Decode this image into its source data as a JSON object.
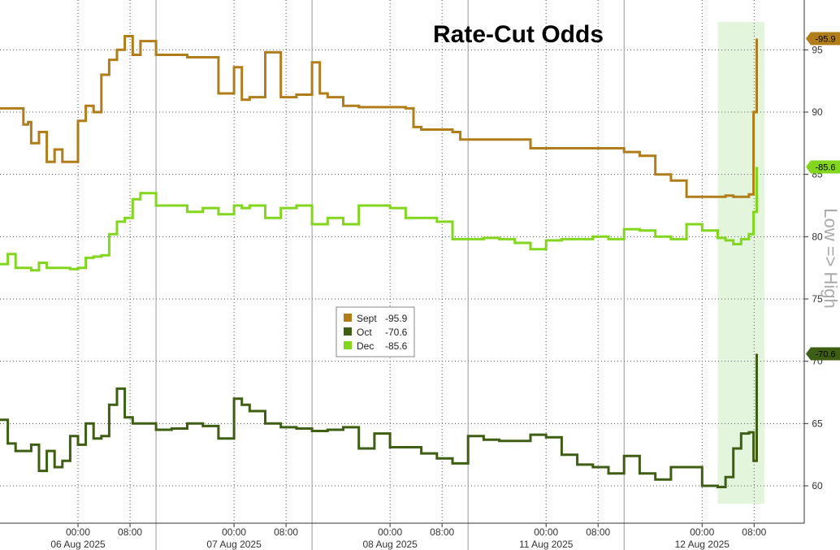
{
  "chart_data": {
    "type": "line",
    "title": "Rate-Cut Odds",
    "side_label": "Low => High",
    "y_axis": {
      "range": [
        57,
        99
      ],
      "ticks": [
        60,
        65,
        70,
        75,
        80,
        85,
        90,
        95
      ],
      "position": "right"
    },
    "x_axis": {
      "day_labels": [
        "06 Aug 2025",
        "07 Aug 2025",
        "08 Aug 2025",
        "11 Aug 2025",
        "12 Aug 2025"
      ],
      "time_ticks": [
        {
          "label": "00:00",
          "t": 0.5
        },
        {
          "label": "08:00",
          "t": 0.8333
        },
        {
          "label": "00:00",
          "t": 1.5
        },
        {
          "label": "08:00",
          "t": 1.8333
        },
        {
          "label": "00:00",
          "t": 2.5
        },
        {
          "label": "08:00",
          "t": 2.8333
        },
        {
          "label": "00:00",
          "t": 3.5
        },
        {
          "label": "08:00",
          "t": 3.8333
        },
        {
          "label": "00:00",
          "t": 4.5
        },
        {
          "label": "08:00",
          "t": 4.8333
        }
      ]
    },
    "grid": true,
    "highlight_region": {
      "t_start": 4.6,
      "t_end": 4.9,
      "color": "#e3f5dc"
    },
    "legend": {
      "position": "center",
      "entries": [
        {
          "name": "Sept",
          "value": "-95.9"
        },
        {
          "name": "Oct",
          "value": "-70.6"
        },
        {
          "name": "Dec",
          "value": "-85.6"
        }
      ]
    },
    "series": [
      {
        "name": "Sept",
        "color": "#b07d1a",
        "last_value": "-95.9",
        "x": [
          0,
          0.1,
          0.15,
          0.18,
          0.2,
          0.25,
          0.3,
          0.35,
          0.4,
          0.45,
          0.5,
          0.55,
          0.6,
          0.65,
          0.7,
          0.75,
          0.8,
          0.85,
          0.9,
          1.0,
          1.1,
          1.2,
          1.3,
          1.4,
          1.5,
          1.55,
          1.6,
          1.7,
          1.8,
          1.9,
          2.0,
          2.05,
          2.1,
          2.2,
          2.3,
          2.4,
          2.5,
          2.6,
          2.65,
          2.7,
          2.8,
          2.9,
          2.95,
          3.0,
          3.1,
          3.2,
          3.4,
          3.5,
          3.6,
          3.8,
          4.0,
          4.1,
          4.2,
          4.3,
          4.4,
          4.5,
          4.6,
          4.65,
          4.7,
          4.75,
          4.8,
          4.83,
          4.85
        ],
        "y": [
          90.3,
          90.3,
          89.0,
          89.2,
          87.5,
          88.4,
          86.0,
          87.0,
          86.0,
          86.0,
          89.3,
          90.5,
          90.0,
          93.0,
          94.2,
          95.0,
          96.1,
          94.6,
          95.7,
          94.6,
          94.6,
          94.4,
          94.4,
          91.5,
          93.6,
          91.0,
          91.2,
          94.8,
          91.2,
          91.4,
          94.0,
          91.5,
          91.2,
          90.5,
          90.4,
          90.4,
          90.4,
          90.3,
          88.8,
          88.6,
          88.6,
          88.4,
          87.8,
          87.8,
          87.8,
          87.8,
          87.1,
          87.1,
          87.1,
          87.1,
          86.8,
          86.5,
          85.0,
          84.5,
          83.2,
          83.2,
          83.2,
          83.3,
          83.2,
          83.2,
          83.4,
          90.0,
          95.9
        ]
      },
      {
        "name": "Oct",
        "color": "#3e5e14",
        "last_value": "-70.6",
        "x": [
          0,
          0.05,
          0.1,
          0.15,
          0.2,
          0.25,
          0.3,
          0.35,
          0.4,
          0.45,
          0.5,
          0.55,
          0.6,
          0.65,
          0.7,
          0.75,
          0.8,
          0.85,
          0.9,
          1.0,
          1.1,
          1.2,
          1.3,
          1.4,
          1.5,
          1.55,
          1.6,
          1.7,
          1.8,
          1.9,
          2.0,
          2.1,
          2.2,
          2.3,
          2.4,
          2.5,
          2.6,
          2.7,
          2.8,
          2.9,
          3.0,
          3.1,
          3.2,
          3.3,
          3.4,
          3.5,
          3.6,
          3.7,
          3.8,
          3.9,
          4.0,
          4.1,
          4.2,
          4.3,
          4.4,
          4.5,
          4.6,
          4.65,
          4.7,
          4.75,
          4.8,
          4.83,
          4.85
        ],
        "y": [
          65.3,
          63.4,
          62.8,
          62.8,
          63.3,
          61.2,
          62.8,
          61.5,
          62.0,
          64.0,
          63.3,
          65.0,
          63.8,
          64.0,
          66.5,
          67.8,
          65.5,
          65.0,
          65.0,
          64.5,
          64.6,
          65.0,
          64.8,
          63.8,
          67.0,
          66.5,
          66.0,
          65.0,
          64.7,
          64.6,
          64.4,
          64.5,
          64.7,
          63.0,
          64.2,
          63.1,
          63.1,
          62.6,
          62.2,
          61.8,
          64.0,
          63.7,
          63.6,
          63.6,
          64.1,
          63.9,
          62.5,
          61.7,
          61.5,
          61.0,
          62.4,
          61.0,
          60.5,
          61.5,
          61.5,
          60.0,
          59.9,
          60.7,
          63.0,
          64.2,
          64.3,
          62.0,
          70.6
        ]
      },
      {
        "name": "Dec",
        "color": "#82d61e",
        "last_value": "-85.6",
        "x": [
          0,
          0.05,
          0.1,
          0.15,
          0.2,
          0.25,
          0.3,
          0.35,
          0.4,
          0.45,
          0.5,
          0.55,
          0.6,
          0.65,
          0.7,
          0.75,
          0.8,
          0.85,
          0.9,
          1.0,
          1.1,
          1.2,
          1.3,
          1.4,
          1.5,
          1.55,
          1.6,
          1.7,
          1.8,
          1.9,
          2.0,
          2.1,
          2.2,
          2.3,
          2.4,
          2.5,
          2.6,
          2.7,
          2.8,
          2.9,
          3.0,
          3.1,
          3.2,
          3.3,
          3.4,
          3.5,
          3.6,
          3.7,
          3.8,
          3.9,
          4.0,
          4.1,
          4.2,
          4.3,
          4.4,
          4.5,
          4.6,
          4.65,
          4.7,
          4.75,
          4.8,
          4.83,
          4.85
        ],
        "y": [
          77.8,
          78.6,
          77.5,
          77.5,
          77.3,
          77.9,
          77.5,
          77.5,
          77.5,
          77.4,
          77.5,
          78.3,
          78.4,
          78.5,
          80.2,
          81.2,
          81.5,
          83.0,
          83.5,
          82.5,
          82.5,
          82.0,
          82.3,
          81.8,
          82.5,
          82.3,
          82.5,
          81.5,
          82.3,
          82.5,
          81.0,
          81.5,
          81.0,
          82.5,
          82.5,
          82.3,
          81.5,
          81.5,
          81.2,
          79.8,
          79.8,
          79.9,
          79.8,
          79.5,
          79.0,
          79.7,
          79.8,
          79.8,
          80.0,
          79.8,
          80.6,
          80.5,
          80.0,
          79.8,
          81.0,
          80.5,
          79.9,
          79.7,
          79.4,
          79.8,
          80.2,
          82.0,
          85.6
        ]
      }
    ]
  }
}
